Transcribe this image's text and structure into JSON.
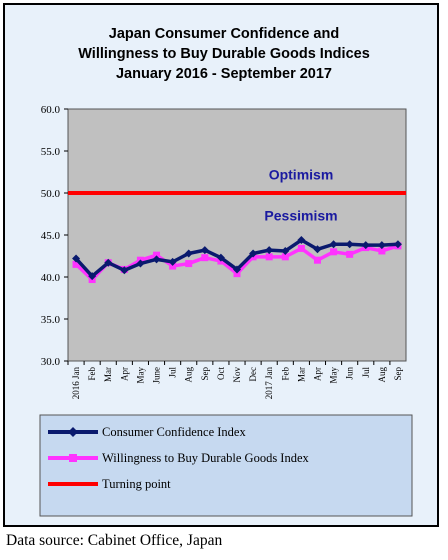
{
  "chart_data": {
    "type": "line",
    "title_lines": [
      "Japan Consumer Confidence and",
      "Willingness to Buy Durable Goods Indices",
      "January 2016 - September  2017"
    ],
    "categories": [
      "2016 Jan",
      "Feb",
      "Mar",
      "Apr",
      "May",
      "June",
      "Jul",
      "Aug",
      "Sep",
      "Oct",
      "Nov",
      "Dec",
      "2017 Jan",
      "Feb",
      "Mar",
      "Apr",
      "May",
      "Jun",
      "Jul",
      "Aug",
      "Sep"
    ],
    "y_ticks": [
      "60.0",
      "55.0",
      "50.0",
      "45.0",
      "40.0",
      "35.0",
      "30.0"
    ],
    "ylim": [
      30,
      60
    ],
    "series": [
      {
        "name": "Consumer Confidence Index",
        "color": "#0a1a6e",
        "marker": "diamond",
        "values": [
          42.2,
          40.1,
          41.7,
          40.8,
          41.6,
          42.1,
          41.8,
          42.8,
          43.2,
          42.3,
          40.9,
          42.8,
          43.2,
          43.1,
          44.4,
          43.3,
          43.9,
          43.9,
          43.8,
          43.8,
          43.9
        ]
      },
      {
        "name": "Willingness to Buy Durable Goods Index",
        "color": "#ff33ff",
        "marker": "square",
        "values": [
          41.5,
          39.7,
          41.7,
          40.9,
          42.0,
          42.6,
          41.3,
          41.6,
          42.3,
          41.9,
          40.4,
          42.4,
          42.4,
          42.4,
          43.4,
          42.0,
          43.0,
          42.7,
          43.5,
          43.1,
          43.7
        ]
      },
      {
        "name": "Turning point",
        "color": "#ff0000",
        "values": [
          50,
          50,
          50,
          50,
          50,
          50,
          50,
          50,
          50,
          50,
          50,
          50,
          50,
          50,
          50,
          50,
          50,
          50,
          50,
          50,
          50
        ]
      }
    ],
    "annotations": [
      {
        "text": "Optimism",
        "y": 52.2
      },
      {
        "text": "Pessimism",
        "y": 47.3
      }
    ],
    "grid": false,
    "legend": "bottom",
    "plot_background": "#c0c0c0",
    "frame_background": "#e8f1fa"
  },
  "source_note": "Data source: Cabinet Office, Japan"
}
